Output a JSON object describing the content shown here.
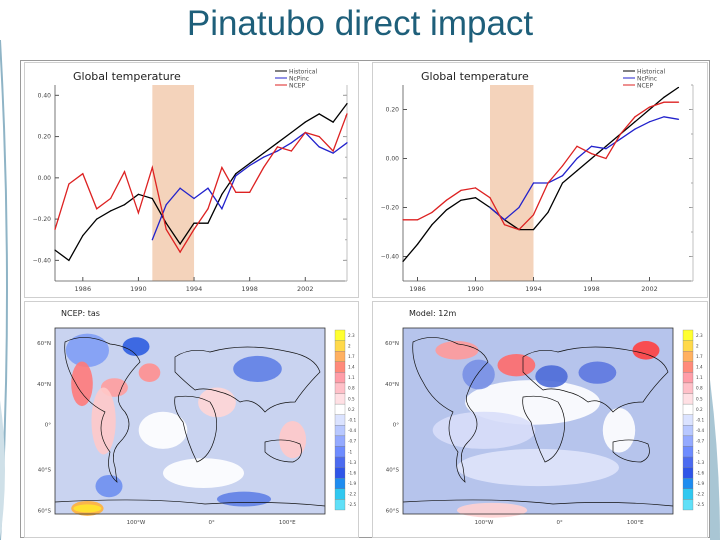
{
  "slide": {
    "title": "Pinatubo direct impact"
  },
  "chart_data": [
    {
      "type": "line",
      "title": "Global temperature",
      "legend": [
        "Historical",
        "NcPinc",
        "NCEP"
      ],
      "legend_position": "top-right",
      "shaded_years": [
        1991,
        1994
      ],
      "xlim": [
        1984,
        2005
      ],
      "ylim": [
        -0.5,
        0.45
      ],
      "yticks": [
        -0.4,
        -0.2,
        0.0,
        0.2,
        0.4
      ],
      "yticklabels": [
        "−0.40",
        "−0.20",
        "0.00",
        "0.20",
        "0.40"
      ],
      "xticks": [
        1986,
        1990,
        1994,
        1998,
        2002
      ],
      "xticklabels": [
        "1986",
        "1990",
        "1994",
        "1998",
        "2002"
      ],
      "series": [
        {
          "name": "Historical",
          "color": "#000000",
          "x": [
            1984,
            1985,
            1986,
            1987,
            1988,
            1989,
            1990,
            1991,
            1992,
            1993,
            1994,
            1995,
            1996,
            1997,
            1998,
            1999,
            2000,
            2001,
            2002,
            2003,
            2004,
            2005
          ],
          "y": [
            -0.35,
            -0.4,
            -0.28,
            -0.2,
            -0.16,
            -0.13,
            -0.08,
            -0.1,
            -0.22,
            -0.32,
            -0.22,
            -0.22,
            -0.08,
            0.02,
            0.07,
            0.12,
            0.17,
            0.22,
            0.27,
            0.31,
            0.27,
            0.36
          ]
        },
        {
          "name": "NcPinc",
          "color": "#2222cc",
          "x": [
            1991,
            1992,
            1993,
            1994,
            1995,
            1996,
            1997,
            1998,
            1999,
            2000,
            2001,
            2002,
            2003,
            2004,
            2005
          ],
          "y": [
            -0.3,
            -0.13,
            -0.05,
            -0.1,
            -0.05,
            -0.15,
            0.01,
            0.06,
            0.1,
            0.13,
            0.17,
            0.22,
            0.15,
            0.12,
            0.17
          ]
        },
        {
          "name": "NCEP",
          "color": "#dd2222",
          "x": [
            1984,
            1985,
            1986,
            1987,
            1988,
            1989,
            1990,
            1991,
            1992,
            1993,
            1994,
            1995,
            1996,
            1997,
            1998,
            1999,
            2000,
            2001,
            2002,
            2003,
            2004,
            2005
          ],
          "y": [
            -0.25,
            -0.03,
            0.02,
            -0.15,
            -0.1,
            0.03,
            -0.17,
            0.05,
            -0.25,
            -0.36,
            -0.25,
            -0.15,
            0.05,
            -0.07,
            -0.07,
            0.05,
            0.15,
            0.13,
            0.22,
            0.2,
            0.13,
            0.31
          ]
        }
      ]
    },
    {
      "type": "line",
      "title": "Global temperature",
      "legend": [
        "Historical",
        "NcPinc",
        "NCEP"
      ],
      "legend_position": "top-right",
      "shaded_years": [
        1991,
        1994
      ],
      "xlim": [
        1985,
        2005
      ],
      "ylim": [
        -0.5,
        0.3
      ],
      "yticks": [
        -0.4,
        -0.2,
        0.0,
        0.2
      ],
      "yticklabels": [
        "−0.40",
        "−0.20",
        "0.00",
        "0.20"
      ],
      "xticks": [
        1986,
        1990,
        1994,
        1998,
        2002
      ],
      "xticklabels": [
        "1986",
        "1990",
        "1994",
        "1998",
        "2002"
      ],
      "series": [
        {
          "name": "Historical",
          "color": "#000000",
          "x": [
            1985,
            1986,
            1987,
            1988,
            1989,
            1990,
            1991,
            1992,
            1993,
            1994,
            1995,
            1996,
            1997,
            1998,
            1999,
            2000,
            2001,
            2002,
            2003,
            2004
          ],
          "y": [
            -0.42,
            -0.35,
            -0.27,
            -0.21,
            -0.17,
            -0.16,
            -0.2,
            -0.25,
            -0.29,
            -0.29,
            -0.22,
            -0.1,
            -0.05,
            0.0,
            0.05,
            0.1,
            0.15,
            0.2,
            0.25,
            0.29
          ]
        },
        {
          "name": "NcPinc",
          "color": "#2222cc",
          "x": [
            1991,
            1992,
            1993,
            1994,
            1995,
            1996,
            1997,
            1998,
            1999,
            2000,
            2001,
            2002,
            2003,
            2004
          ],
          "y": [
            -0.2,
            -0.25,
            -0.2,
            -0.1,
            -0.1,
            -0.07,
            0.0,
            0.05,
            0.04,
            0.08,
            0.12,
            0.15,
            0.17,
            0.16
          ]
        },
        {
          "name": "NCEP",
          "color": "#dd2222",
          "x": [
            1985,
            1986,
            1987,
            1988,
            1989,
            1990,
            1991,
            1992,
            1993,
            1994,
            1995,
            1996,
            1997,
            1998,
            1999,
            2000,
            2001,
            2002,
            2003,
            2004
          ],
          "y": [
            -0.25,
            -0.25,
            -0.22,
            -0.17,
            -0.13,
            -0.12,
            -0.16,
            -0.27,
            -0.29,
            -0.23,
            -0.1,
            -0.03,
            0.05,
            0.02,
            0.0,
            0.1,
            0.17,
            0.21,
            0.23,
            0.23
          ]
        }
      ]
    },
    {
      "type": "heatmap",
      "title": "NCEP: tas",
      "lat_labels": [
        "60°N",
        "40°N",
        "0°",
        "40°S",
        "60°S"
      ],
      "lon_labels": [
        "100°W",
        "0°",
        "100°E"
      ],
      "colorbar": [
        "2.3",
        "2",
        "1.7",
        "1.4",
        "1.1",
        "0.8",
        "0.5",
        "0.2",
        "-0.1",
        "-0.4",
        "-0.7",
        "-1",
        "-1.3",
        "-1.6",
        "-1.9",
        "-2.2",
        "-2.5"
      ]
    },
    {
      "type": "heatmap",
      "title": "Model: 12m",
      "lat_labels": [
        "60°N",
        "40°N",
        "0°",
        "40°S",
        "60°S"
      ],
      "lon_labels": [
        "100°W",
        "0°",
        "100°E"
      ],
      "colorbar": [
        "2.3",
        "2",
        "1.7",
        "1.4",
        "1.1",
        "0.8",
        "0.5",
        "0.2",
        "-0.1",
        "-0.4",
        "-0.7",
        "-1",
        "-1.3",
        "-1.6",
        "-1.9",
        "-2.2",
        "-2.5"
      ]
    }
  ]
}
